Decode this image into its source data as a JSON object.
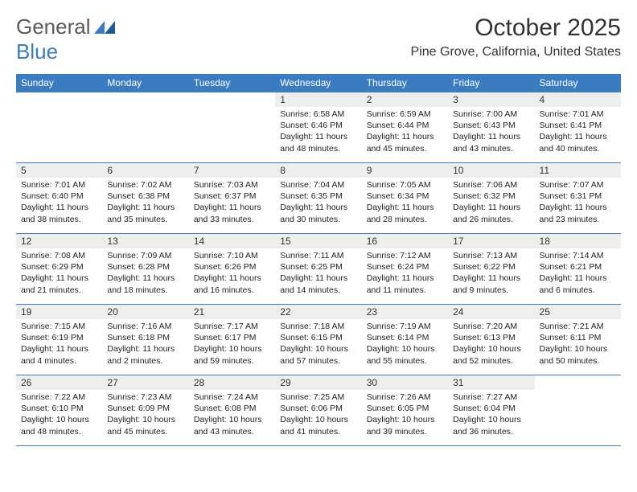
{
  "logo": {
    "text1": "General",
    "text2": "Blue"
  },
  "title": "October 2025",
  "location": "Pine Grove, California, United States",
  "colors": {
    "header_bg": "#3b7bbf",
    "header_text": "#ffffff",
    "daynum_bg": "#eeeeee",
    "border": "#3b7bbf",
    "logo_gray": "#5a5a5a",
    "logo_blue": "#3b7bbf"
  },
  "day_headers": [
    "Sunday",
    "Monday",
    "Tuesday",
    "Wednesday",
    "Thursday",
    "Friday",
    "Saturday"
  ],
  "weeks": [
    [
      {
        "n": "",
        "sunrise": "",
        "sunset": "",
        "daylight": ""
      },
      {
        "n": "",
        "sunrise": "",
        "sunset": "",
        "daylight": ""
      },
      {
        "n": "",
        "sunrise": "",
        "sunset": "",
        "daylight": ""
      },
      {
        "n": "1",
        "sunrise": "Sunrise: 6:58 AM",
        "sunset": "Sunset: 6:46 PM",
        "daylight": "Daylight: 11 hours and 48 minutes."
      },
      {
        "n": "2",
        "sunrise": "Sunrise: 6:59 AM",
        "sunset": "Sunset: 6:44 PM",
        "daylight": "Daylight: 11 hours and 45 minutes."
      },
      {
        "n": "3",
        "sunrise": "Sunrise: 7:00 AM",
        "sunset": "Sunset: 6:43 PM",
        "daylight": "Daylight: 11 hours and 43 minutes."
      },
      {
        "n": "4",
        "sunrise": "Sunrise: 7:01 AM",
        "sunset": "Sunset: 6:41 PM",
        "daylight": "Daylight: 11 hours and 40 minutes."
      }
    ],
    [
      {
        "n": "5",
        "sunrise": "Sunrise: 7:01 AM",
        "sunset": "Sunset: 6:40 PM",
        "daylight": "Daylight: 11 hours and 38 minutes."
      },
      {
        "n": "6",
        "sunrise": "Sunrise: 7:02 AM",
        "sunset": "Sunset: 6:38 PM",
        "daylight": "Daylight: 11 hours and 35 minutes."
      },
      {
        "n": "7",
        "sunrise": "Sunrise: 7:03 AM",
        "sunset": "Sunset: 6:37 PM",
        "daylight": "Daylight: 11 hours and 33 minutes."
      },
      {
        "n": "8",
        "sunrise": "Sunrise: 7:04 AM",
        "sunset": "Sunset: 6:35 PM",
        "daylight": "Daylight: 11 hours and 30 minutes."
      },
      {
        "n": "9",
        "sunrise": "Sunrise: 7:05 AM",
        "sunset": "Sunset: 6:34 PM",
        "daylight": "Daylight: 11 hours and 28 minutes."
      },
      {
        "n": "10",
        "sunrise": "Sunrise: 7:06 AM",
        "sunset": "Sunset: 6:32 PM",
        "daylight": "Daylight: 11 hours and 26 minutes."
      },
      {
        "n": "11",
        "sunrise": "Sunrise: 7:07 AM",
        "sunset": "Sunset: 6:31 PM",
        "daylight": "Daylight: 11 hours and 23 minutes."
      }
    ],
    [
      {
        "n": "12",
        "sunrise": "Sunrise: 7:08 AM",
        "sunset": "Sunset: 6:29 PM",
        "daylight": "Daylight: 11 hours and 21 minutes."
      },
      {
        "n": "13",
        "sunrise": "Sunrise: 7:09 AM",
        "sunset": "Sunset: 6:28 PM",
        "daylight": "Daylight: 11 hours and 18 minutes."
      },
      {
        "n": "14",
        "sunrise": "Sunrise: 7:10 AM",
        "sunset": "Sunset: 6:26 PM",
        "daylight": "Daylight: 11 hours and 16 minutes."
      },
      {
        "n": "15",
        "sunrise": "Sunrise: 7:11 AM",
        "sunset": "Sunset: 6:25 PM",
        "daylight": "Daylight: 11 hours and 14 minutes."
      },
      {
        "n": "16",
        "sunrise": "Sunrise: 7:12 AM",
        "sunset": "Sunset: 6:24 PM",
        "daylight": "Daylight: 11 hours and 11 minutes."
      },
      {
        "n": "17",
        "sunrise": "Sunrise: 7:13 AM",
        "sunset": "Sunset: 6:22 PM",
        "daylight": "Daylight: 11 hours and 9 minutes."
      },
      {
        "n": "18",
        "sunrise": "Sunrise: 7:14 AM",
        "sunset": "Sunset: 6:21 PM",
        "daylight": "Daylight: 11 hours and 6 minutes."
      }
    ],
    [
      {
        "n": "19",
        "sunrise": "Sunrise: 7:15 AM",
        "sunset": "Sunset: 6:19 PM",
        "daylight": "Daylight: 11 hours and 4 minutes."
      },
      {
        "n": "20",
        "sunrise": "Sunrise: 7:16 AM",
        "sunset": "Sunset: 6:18 PM",
        "daylight": "Daylight: 11 hours and 2 minutes."
      },
      {
        "n": "21",
        "sunrise": "Sunrise: 7:17 AM",
        "sunset": "Sunset: 6:17 PM",
        "daylight": "Daylight: 10 hours and 59 minutes."
      },
      {
        "n": "22",
        "sunrise": "Sunrise: 7:18 AM",
        "sunset": "Sunset: 6:15 PM",
        "daylight": "Daylight: 10 hours and 57 minutes."
      },
      {
        "n": "23",
        "sunrise": "Sunrise: 7:19 AM",
        "sunset": "Sunset: 6:14 PM",
        "daylight": "Daylight: 10 hours and 55 minutes."
      },
      {
        "n": "24",
        "sunrise": "Sunrise: 7:20 AM",
        "sunset": "Sunset: 6:13 PM",
        "daylight": "Daylight: 10 hours and 52 minutes."
      },
      {
        "n": "25",
        "sunrise": "Sunrise: 7:21 AM",
        "sunset": "Sunset: 6:11 PM",
        "daylight": "Daylight: 10 hours and 50 minutes."
      }
    ],
    [
      {
        "n": "26",
        "sunrise": "Sunrise: 7:22 AM",
        "sunset": "Sunset: 6:10 PM",
        "daylight": "Daylight: 10 hours and 48 minutes."
      },
      {
        "n": "27",
        "sunrise": "Sunrise: 7:23 AM",
        "sunset": "Sunset: 6:09 PM",
        "daylight": "Daylight: 10 hours and 45 minutes."
      },
      {
        "n": "28",
        "sunrise": "Sunrise: 7:24 AM",
        "sunset": "Sunset: 6:08 PM",
        "daylight": "Daylight: 10 hours and 43 minutes."
      },
      {
        "n": "29",
        "sunrise": "Sunrise: 7:25 AM",
        "sunset": "Sunset: 6:06 PM",
        "daylight": "Daylight: 10 hours and 41 minutes."
      },
      {
        "n": "30",
        "sunrise": "Sunrise: 7:26 AM",
        "sunset": "Sunset: 6:05 PM",
        "daylight": "Daylight: 10 hours and 39 minutes."
      },
      {
        "n": "31",
        "sunrise": "Sunrise: 7:27 AM",
        "sunset": "Sunset: 6:04 PM",
        "daylight": "Daylight: 10 hours and 36 minutes."
      },
      {
        "n": "",
        "sunrise": "",
        "sunset": "",
        "daylight": ""
      }
    ]
  ]
}
